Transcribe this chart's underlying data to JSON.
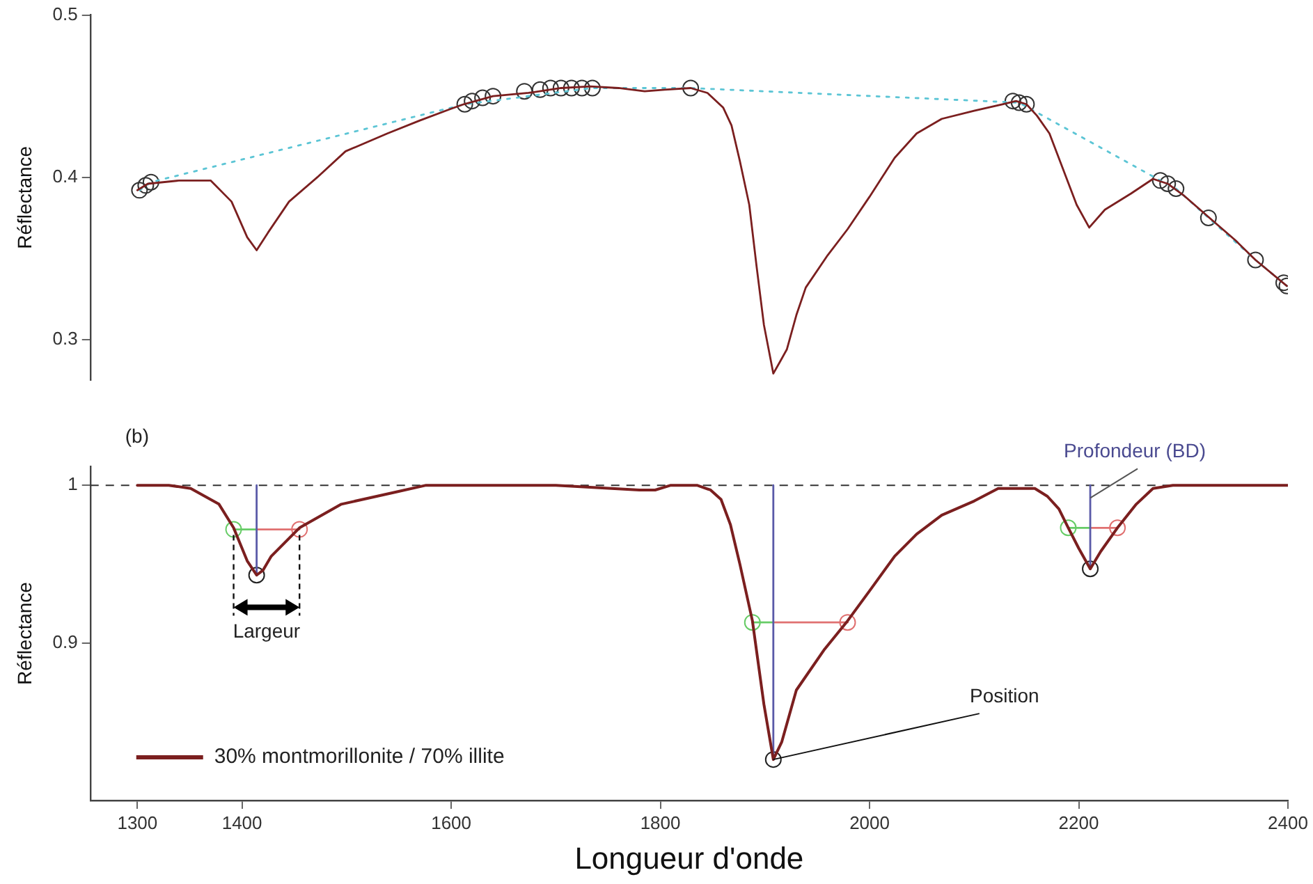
{
  "chart_data": [
    {
      "type": "line",
      "ylabel": "Réflectance",
      "xlim": [
        1255,
        2400
      ],
      "ylim": [
        0.275,
        0.5
      ],
      "yticks": [
        0.3,
        0.4,
        0.5
      ],
      "tick_labels": "y",
      "grid": false,
      "legend": false,
      "series": [
        {
          "type": "line",
          "color": "#7b1f1f",
          "marker": "none",
          "line_style": "solid",
          "x": [
            1300,
            1310,
            1340,
            1370,
            1390,
            1405,
            1414,
            1425,
            1445,
            1472,
            1499,
            1539,
            1570,
            1599,
            1612,
            1640,
            1674,
            1705,
            1733,
            1760,
            1785,
            1804,
            1829,
            1845,
            1860,
            1868,
            1876,
            1885,
            1892,
            1899,
            1908,
            1915,
            1921,
            1930,
            1939,
            1960,
            1979,
            2000,
            2024,
            2045,
            2069,
            2100,
            2127,
            2140,
            2150,
            2160,
            2172,
            2185,
            2198,
            2210,
            2225,
            2250,
            2271,
            2285,
            2300,
            2325,
            2350,
            2369,
            2399
          ],
          "values": [
            0.392,
            0.396,
            0.398,
            0.398,
            0.385,
            0.363,
            0.355,
            0.366,
            0.385,
            0.4,
            0.416,
            0.427,
            0.435,
            0.442,
            0.445,
            0.45,
            0.452,
            0.455,
            0.456,
            0.455,
            0.453,
            0.454,
            0.455,
            0.452,
            0.443,
            0.432,
            0.41,
            0.383,
            0.345,
            0.309,
            0.279,
            0.287,
            0.294,
            0.315,
            0.332,
            0.352,
            0.368,
            0.388,
            0.412,
            0.427,
            0.436,
            0.441,
            0.445,
            0.447,
            0.445,
            0.438,
            0.427,
            0.405,
            0.383,
            0.369,
            0.38,
            0.39,
            0.399,
            0.396,
            0.389,
            0.375,
            0.361,
            0.349,
            0.333
          ]
        },
        {
          "type": "line",
          "color": "#5cc5d5",
          "marker": "none",
          "line_style": "dotted",
          "x": [
            1302,
            1313,
            1613,
            1735,
            1829,
            2143,
            2278,
            2293,
            2324,
            2369,
            2399
          ],
          "values": [
            0.392,
            0.397,
            0.445,
            0.455,
            0.455,
            0.446,
            0.398,
            0.393,
            0.375,
            0.349,
            0.333
          ]
        },
        {
          "type": "scatter",
          "color": "#333333",
          "marker": "circle",
          "x": [
            1302,
            1308,
            1313,
            1613,
            1620,
            1630,
            1640,
            1670,
            1685,
            1695,
            1705,
            1715,
            1725,
            1735,
            1829,
            2137,
            2143,
            2150,
            2278,
            2285,
            2293,
            2324,
            2369,
            2396,
            2399
          ],
          "values": [
            0.392,
            0.395,
            0.397,
            0.445,
            0.447,
            0.449,
            0.45,
            0.453,
            0.454,
            0.455,
            0.455,
            0.455,
            0.455,
            0.455,
            0.455,
            0.447,
            0.446,
            0.445,
            0.398,
            0.396,
            0.393,
            0.375,
            0.349,
            0.335,
            0.333
          ]
        }
      ]
    },
    {
      "type": "line",
      "xlabel": "Longueur d'onde",
      "ylabel": "Réflectance",
      "xlim": [
        1255,
        2400
      ],
      "ylim": [
        0.8,
        1.012
      ],
      "xticks": [
        1300,
        1400,
        1600,
        1800,
        2000,
        2200,
        2400
      ],
      "yticks": [
        0.9,
        1
      ],
      "grid": false,
      "legend": "bottom left",
      "annotations": [
        "(b)",
        {
          "text": "Largeur",
          "x": 1392,
          "y": 0.972
        },
        {
          "text": "Position",
          "x": 1908,
          "y": 0.826
        },
        {
          "text": "Profondeur (BD)",
          "x": 2211,
          "y": 0.992
        }
      ],
      "ref_lines": [
        {
          "axis": "y",
          "value": 1,
          "color": "#333333",
          "line_style": "dashed"
        }
      ],
      "series": [
        {
          "type": "line",
          "name": "30% montmorillonite / 70% illite",
          "color": "#7b1f1f",
          "marker": "none",
          "line_style": "solid",
          "x": [
            1300,
            1330,
            1351,
            1378,
            1392,
            1405,
            1414,
            1420,
            1428,
            1455,
            1495,
            1549,
            1576,
            1700,
            1780,
            1795,
            1810,
            1835,
            1848,
            1858,
            1867,
            1876,
            1888,
            1899,
            1908,
            1916,
            1930,
            1957,
            1979,
            2000,
            2024,
            2045,
            2069,
            2100,
            2123,
            2158,
            2170,
            2181,
            2190,
            2200,
            2211,
            2221,
            2237,
            2255,
            2271,
            2290,
            2400
          ],
          "values": [
            1.0,
            1.0,
            0.998,
            0.988,
            0.973,
            0.952,
            0.943,
            0.946,
            0.955,
            0.973,
            0.988,
            0.996,
            1.0,
            1.0,
            0.997,
            0.997,
            1.0,
            1.0,
            0.997,
            0.991,
            0.975,
            0.95,
            0.914,
            0.861,
            0.826,
            0.837,
            0.87,
            0.896,
            0.914,
            0.933,
            0.955,
            0.969,
            0.981,
            0.99,
            0.998,
            0.998,
            0.993,
            0.985,
            0.973,
            0.96,
            0.947,
            0.958,
            0.973,
            0.988,
            0.998,
            1.0,
            1.0
          ]
        },
        {
          "type": "line",
          "color": "#5a5aa8",
          "marker": "none",
          "line_style": "solid",
          "x": [
            1414,
            1414
          ],
          "values": [
            1,
            0.943
          ]
        },
        {
          "type": "line",
          "color": "#5a5aa8",
          "marker": "none",
          "line_style": "solid",
          "x": [
            1908,
            1908
          ],
          "values": [
            1,
            0.826
          ]
        },
        {
          "type": "line",
          "color": "#5a5aa8",
          "marker": "none",
          "line_style": "solid",
          "x": [
            2211,
            2211
          ],
          "values": [
            1,
            0.947
          ]
        },
        {
          "type": "line",
          "color": "#66cc66",
          "marker": "none",
          "line_style": "solid",
          "x": [
            1392,
            1414
          ],
          "values": [
            0.972,
            0.972
          ]
        },
        {
          "type": "line",
          "color": "#66cc66",
          "marker": "none",
          "line_style": "solid",
          "x": [
            1888,
            1908
          ],
          "values": [
            0.913,
            0.913
          ]
        },
        {
          "type": "line",
          "color": "#66cc66",
          "marker": "none",
          "line_style": "solid",
          "x": [
            2190,
            2211
          ],
          "values": [
            0.973,
            0.973
          ]
        },
        {
          "type": "line",
          "color": "#e07070",
          "marker": "none",
          "line_style": "solid",
          "x": [
            1414,
            1455
          ],
          "values": [
            0.972,
            0.972
          ]
        },
        {
          "type": "line",
          "color": "#e07070",
          "marker": "none",
          "line_style": "solid",
          "x": [
            1908,
            1979
          ],
          "values": [
            0.913,
            0.913
          ]
        },
        {
          "type": "line",
          "color": "#e07070",
          "marker": "none",
          "line_style": "solid",
          "x": [
            2211,
            2237
          ],
          "values": [
            0.973,
            0.973
          ]
        },
        {
          "type": "scatter",
          "color": "#66cc66",
          "marker": "circle",
          "x": [
            1392,
            1888,
            2190
          ],
          "values": [
            0.972,
            0.913,
            0.973
          ]
        },
        {
          "type": "scatter",
          "color": "#e07070",
          "marker": "circle",
          "x": [
            1455,
            1979,
            2237
          ],
          "values": [
            0.972,
            0.913,
            0.973
          ]
        },
        {
          "type": "scatter",
          "color": "#222222",
          "marker": "circle",
          "x": [
            1414,
            1908,
            2211
          ],
          "values": [
            0.943,
            0.826,
            0.947
          ]
        }
      ]
    }
  ]
}
